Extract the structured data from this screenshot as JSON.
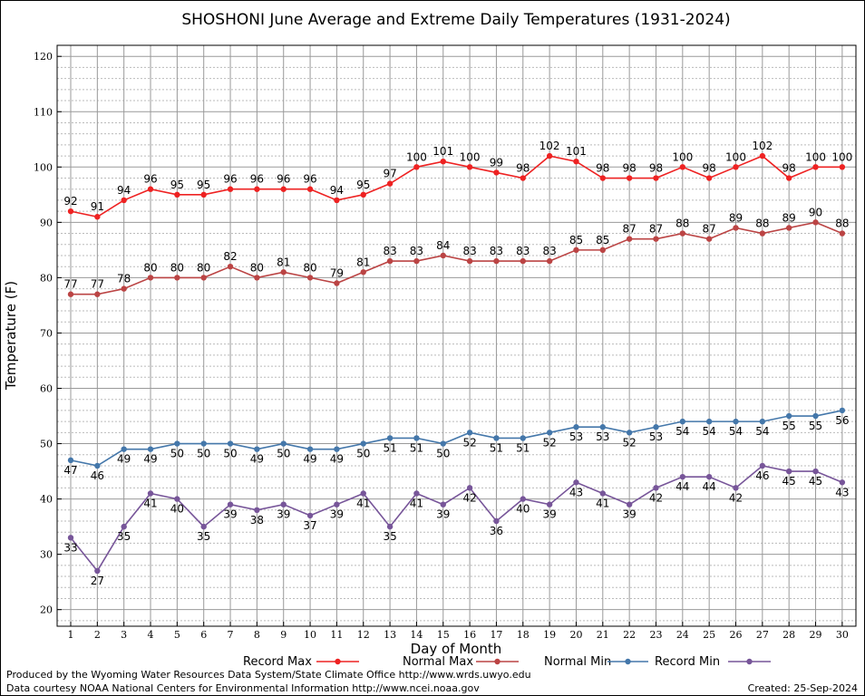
{
  "chart_data": {
    "type": "line",
    "title": "SHOSHONI June Average and Extreme Daily Temperatures (1931-2024)",
    "xlabel": "Day of Month",
    "ylabel": "Temperature (F)",
    "ylim": [
      17,
      122
    ],
    "yticks": [
      20,
      30,
      40,
      50,
      60,
      70,
      80,
      90,
      100,
      110,
      120
    ],
    "grid": true,
    "legend_position": "bottom",
    "x": [
      1,
      2,
      3,
      4,
      5,
      6,
      7,
      8,
      9,
      10,
      11,
      12,
      13,
      14,
      15,
      16,
      17,
      18,
      19,
      20,
      21,
      22,
      23,
      24,
      25,
      26,
      27,
      28,
      29,
      30
    ],
    "series": [
      {
        "name": "Record Max",
        "color": "#ee2222",
        "label_position": "above",
        "values": [
          92,
          91,
          94,
          96,
          95,
          95,
          96,
          96,
          96,
          96,
          94,
          95,
          97,
          100,
          101,
          100,
          99,
          98,
          102,
          101,
          98,
          98,
          98,
          100,
          98,
          100,
          102,
          98,
          100,
          100
        ]
      },
      {
        "name": "Normal Max",
        "color": "#bb4444",
        "label_position": "above",
        "values": [
          77,
          77,
          78,
          80,
          80,
          80,
          82,
          80,
          81,
          80,
          79,
          81,
          83,
          83,
          84,
          83,
          83,
          83,
          83,
          85,
          85,
          87,
          87,
          88,
          87,
          89,
          88,
          89,
          90,
          88
        ]
      },
      {
        "name": "Normal Min",
        "color": "#4477aa",
        "label_position": "below",
        "values": [
          47,
          46,
          49,
          49,
          50,
          50,
          50,
          49,
          50,
          49,
          49,
          50,
          51,
          51,
          50,
          52,
          51,
          51,
          52,
          53,
          53,
          52,
          53,
          54,
          54,
          54,
          54,
          55,
          55,
          56
        ]
      },
      {
        "name": "Record Min",
        "color": "#775599",
        "label_position": "below",
        "values": [
          33,
          27,
          35,
          41,
          40,
          35,
          39,
          38,
          39,
          37,
          39,
          41,
          35,
          41,
          39,
          42,
          36,
          40,
          39,
          43,
          41,
          39,
          42,
          44,
          44,
          42,
          46,
          45,
          45,
          43
        ]
      }
    ]
  },
  "footer": {
    "produced_by": "Produced by the Wyoming Water Resources Data System/State Climate Office http://www.wrds.uwyo.edu",
    "courtesy": "Data courtesy NOAA National Centers for Environmental Information http://www.ncei.noaa.gov",
    "created": "Created:  25-Sep-2024"
  }
}
